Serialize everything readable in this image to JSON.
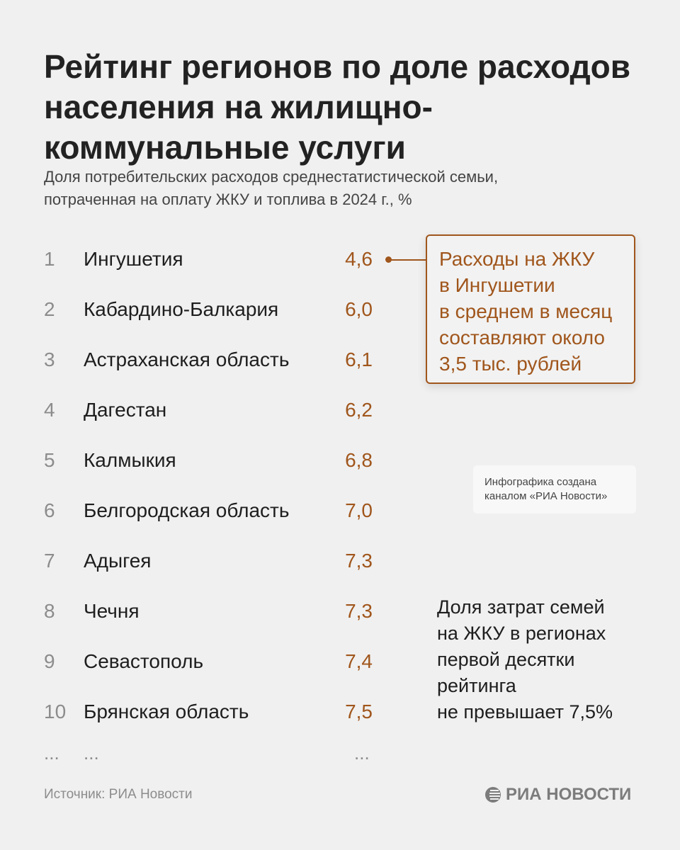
{
  "header": {
    "title": "Рейтинг регионов по доле расходов населения на жилищно-коммунальные услуги",
    "subtitle_line1": "Доля потребительских расходов среднестатистической семьи,",
    "subtitle_line2": "потраченная на оплату ЖКУ и топлива в 2024 г., %"
  },
  "chart_data": {
    "type": "table",
    "title": "Рейтинг регионов по доле расходов населения на жилищно-коммунальные услуги",
    "columns": [
      "rank",
      "region",
      "value"
    ],
    "rows": [
      {
        "rank": "1",
        "region": "Ингушетия",
        "value": "4,6"
      },
      {
        "rank": "2",
        "region": "Кабардино-Балкария",
        "value": "6,0"
      },
      {
        "rank": "3",
        "region": "Астраханская область",
        "value": "6,1"
      },
      {
        "rank": "4",
        "region": "Дагестан",
        "value": "6,2"
      },
      {
        "rank": "5",
        "region": "Калмыкия",
        "value": "6,8"
      },
      {
        "rank": "6",
        "region": "Белгородская область",
        "value": "7,0"
      },
      {
        "rank": "7",
        "region": "Адыгея",
        "value": "7,3"
      },
      {
        "rank": "8",
        "region": "Чечня",
        "value": "7,3"
      },
      {
        "rank": "9",
        "region": "Севастополь",
        "value": "7,4"
      },
      {
        "rank": "10",
        "region": "Брянская область",
        "value": "7,5"
      }
    ],
    "ellipsis": "..."
  },
  "callout": {
    "lines": [
      "Расходы на ЖКУ",
      "в Ингушетии",
      "в среднем в месяц",
      "составляют около",
      "3,5 тыс. рублей"
    ]
  },
  "credit": {
    "line1": "Инфографика создана",
    "line2": "каналом «РИА Новости»"
  },
  "note": {
    "lines": [
      "Доля затрат семей",
      "на ЖКУ в регионах",
      "первой десятки",
      "рейтинга",
      "не превышает 7,5%"
    ]
  },
  "footer": {
    "source": "Источник: РИА Новости",
    "logo": "РИА НОВОСТИ"
  },
  "colors": {
    "accent": "#a0561c",
    "background": "#f0f0f0"
  }
}
